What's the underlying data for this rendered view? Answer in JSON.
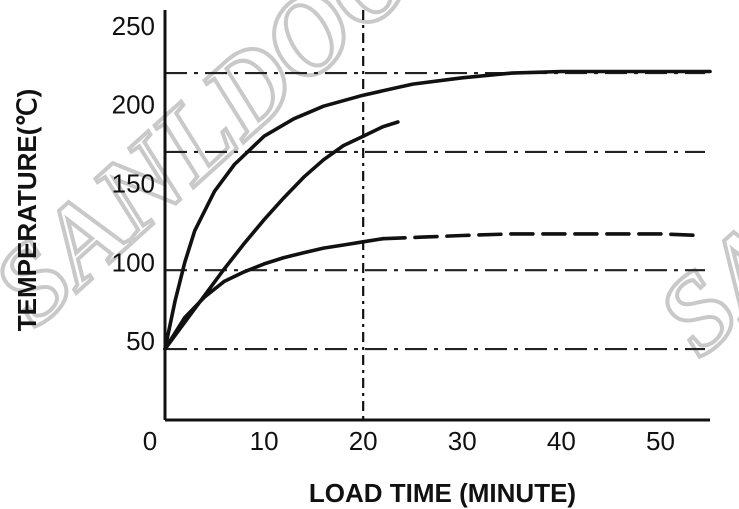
{
  "watermark": "SANLDOON",
  "chart_data": {
    "type": "line",
    "xlabel": "LOAD TIME (MINUTE)",
    "ylabel": "TEMPERATURE(℃)",
    "xlim": [
      0,
      55
    ],
    "ylim": [
      0,
      260
    ],
    "x_ticks": [
      0,
      10,
      20,
      30,
      40,
      50
    ],
    "y_ticks": [
      50,
      100,
      150,
      200,
      250
    ],
    "reference_lines": {
      "horizontal": [
        45,
        95,
        170,
        220
      ],
      "vertical": [
        20
      ]
    },
    "series": [
      {
        "dashed": false,
        "x": [
          0,
          1,
          2,
          3,
          5,
          7,
          10,
          13,
          16,
          20,
          25,
          30,
          35,
          40,
          45,
          50,
          55
        ],
        "y": [
          45,
          75,
          100,
          120,
          145,
          162,
          180,
          191,
          199,
          206,
          213,
          217,
          220,
          221,
          221,
          221,
          221
        ]
      },
      {
        "dashed": false,
        "x": [
          0,
          2,
          4,
          6,
          8,
          10,
          12,
          14,
          16,
          18,
          20,
          22,
          23.5
        ],
        "y": [
          45,
          62,
          79,
          96,
          112,
          127,
          141,
          154,
          165,
          174,
          180,
          186,
          189
        ]
      },
      {
        "dashed": false,
        "x": [
          0,
          2,
          4,
          6,
          8,
          10,
          12,
          14,
          16,
          18,
          20,
          22
        ],
        "y": [
          45,
          65,
          78,
          88,
          94,
          99,
          103,
          106,
          109,
          111,
          113,
          115
        ]
      },
      {
        "dashed": true,
        "x": [
          22,
          26,
          30,
          35,
          40,
          45,
          50,
          54
        ],
        "y": [
          115,
          116,
          117,
          118,
          118,
          118,
          118,
          117
        ]
      }
    ]
  }
}
